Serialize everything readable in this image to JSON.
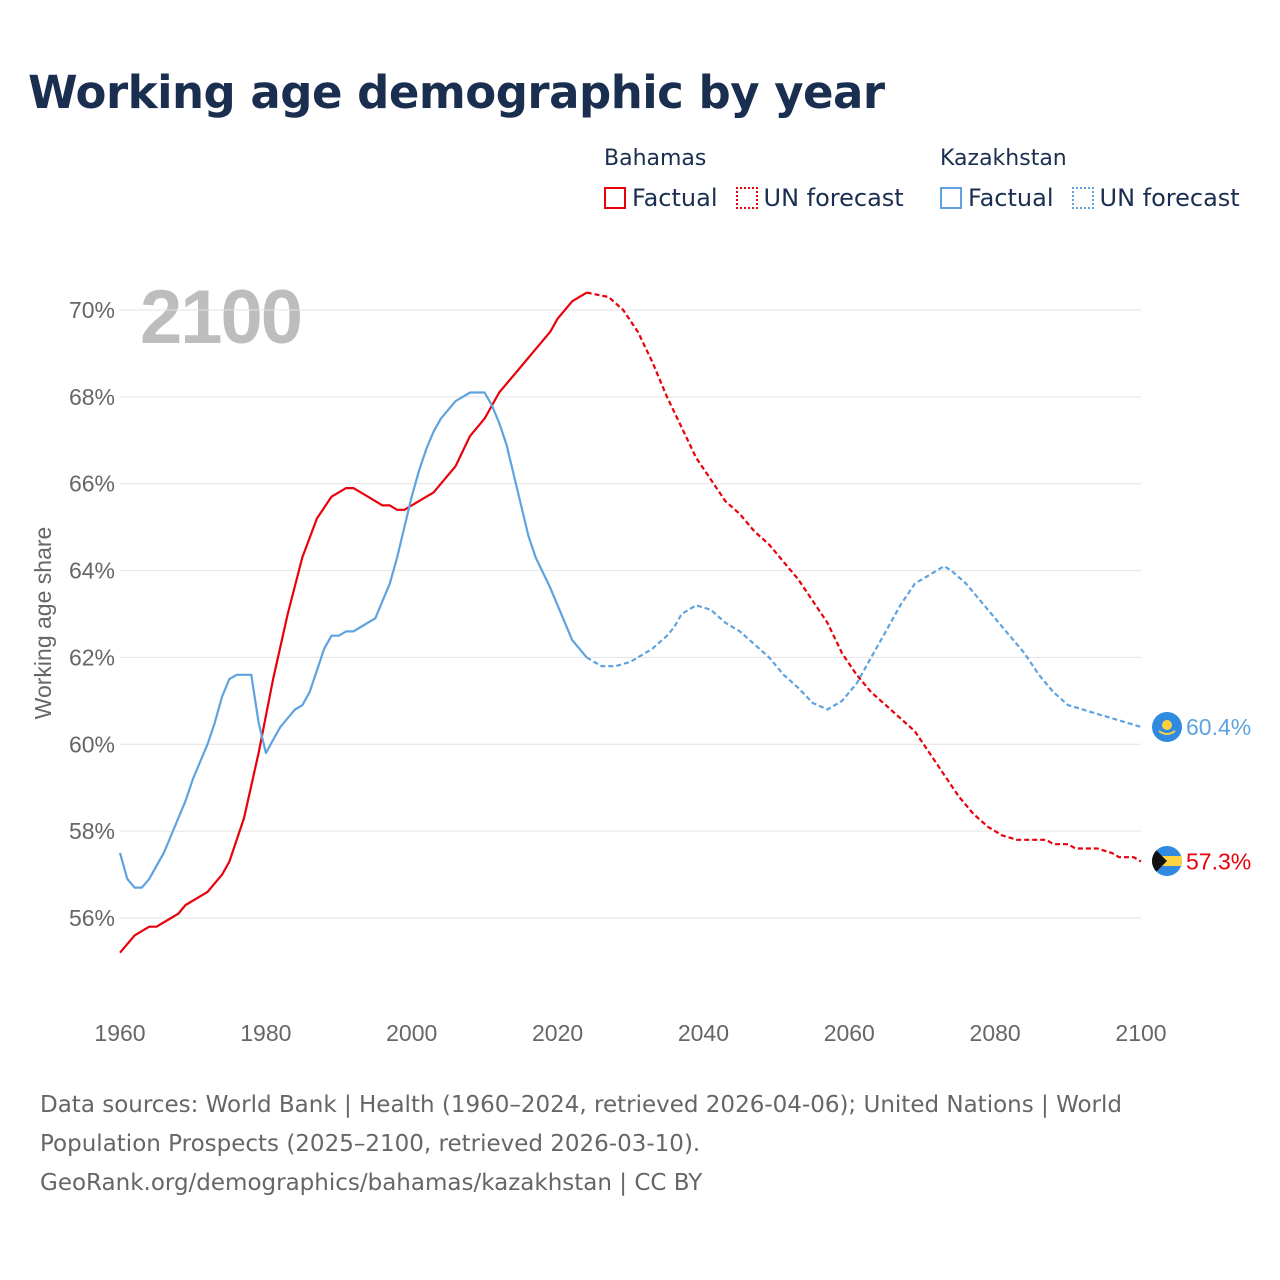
{
  "title": "Working age demographic by year",
  "legend": [
    {
      "group": "Bahamas",
      "factual": "Factual",
      "forecast": "UN forecast",
      "color": "#e8000b"
    },
    {
      "group": "Kazakhstan",
      "factual": "Factual",
      "forecast": "UN forecast",
      "color": "#5ea3e0"
    }
  ],
  "year_label": "2100",
  "source": {
    "line1": "Data sources: World Bank | Health (1960–2024, retrieved 2026-04-06); United Nations | World Population Prospects (2025–2100, retrieved 2026-03-10).",
    "line2": "GeoRank.org/demographics/bahamas/kazakhstan | CC BY"
  },
  "chart_data": {
    "type": "line",
    "title": "Working age demographic by year",
    "xlabel": "",
    "ylabel": "Working age share",
    "xlim": [
      1960,
      2100
    ],
    "ylim": [
      54.2,
      71.5
    ],
    "x_ticks": [
      1960,
      1980,
      2000,
      2020,
      2040,
      2060,
      2080,
      2100
    ],
    "x_tick_labels": [
      "1960",
      "1980",
      "2000",
      "2020",
      "2040",
      "2060",
      "2080",
      "2100"
    ],
    "y_ticks": [
      56,
      58,
      60,
      62,
      64,
      66,
      68,
      70
    ],
    "y_tick_labels": [
      "56%",
      "58%",
      "60%",
      "62%",
      "64%",
      "66%",
      "68%",
      "70%"
    ],
    "grid": true,
    "factual_until": 2024,
    "series": [
      {
        "name": "Bahamas",
        "color": "#e8000b",
        "end_label": "57.3%",
        "points": [
          [
            1960,
            55.2
          ],
          [
            1962,
            55.6
          ],
          [
            1964,
            55.8
          ],
          [
            1965,
            55.8
          ],
          [
            1967,
            56.0
          ],
          [
            1968,
            56.1
          ],
          [
            1969,
            56.3
          ],
          [
            1971,
            56.5
          ],
          [
            1972,
            56.6
          ],
          [
            1974,
            57.0
          ],
          [
            1975,
            57.3
          ],
          [
            1977,
            58.3
          ],
          [
            1979,
            59.8
          ],
          [
            1981,
            61.5
          ],
          [
            1983,
            63.0
          ],
          [
            1985,
            64.3
          ],
          [
            1987,
            65.2
          ],
          [
            1989,
            65.7
          ],
          [
            1991,
            65.9
          ],
          [
            1992,
            65.9
          ],
          [
            1994,
            65.7
          ],
          [
            1996,
            65.5
          ],
          [
            1997,
            65.5
          ],
          [
            1998,
            65.4
          ],
          [
            1999,
            65.4
          ],
          [
            2001,
            65.6
          ],
          [
            2003,
            65.8
          ],
          [
            2004,
            66.0
          ],
          [
            2006,
            66.4
          ],
          [
            2008,
            67.1
          ],
          [
            2010,
            67.5
          ],
          [
            2012,
            68.1
          ],
          [
            2013,
            68.3
          ],
          [
            2015,
            68.7
          ],
          [
            2017,
            69.1
          ],
          [
            2019,
            69.5
          ],
          [
            2020,
            69.8
          ],
          [
            2022,
            70.2
          ],
          [
            2024,
            70.4
          ],
          [
            2027,
            70.3
          ],
          [
            2029,
            70.0
          ],
          [
            2031,
            69.5
          ],
          [
            2033,
            68.8
          ],
          [
            2035,
            68.0
          ],
          [
            2037,
            67.3
          ],
          [
            2039,
            66.6
          ],
          [
            2041,
            66.1
          ],
          [
            2043,
            65.6
          ],
          [
            2045,
            65.3
          ],
          [
            2047,
            64.9
          ],
          [
            2049,
            64.6
          ],
          [
            2051,
            64.2
          ],
          [
            2053,
            63.8
          ],
          [
            2055,
            63.3
          ],
          [
            2057,
            62.8
          ],
          [
            2059,
            62.1
          ],
          [
            2061,
            61.6
          ],
          [
            2063,
            61.2
          ],
          [
            2065,
            60.9
          ],
          [
            2067,
            60.6
          ],
          [
            2069,
            60.3
          ],
          [
            2071,
            59.8
          ],
          [
            2073,
            59.3
          ],
          [
            2075,
            58.8
          ],
          [
            2077,
            58.4
          ],
          [
            2079,
            58.1
          ],
          [
            2081,
            57.9
          ],
          [
            2083,
            57.8
          ],
          [
            2087,
            57.8
          ],
          [
            2088,
            57.7
          ],
          [
            2090,
            57.7
          ],
          [
            2091,
            57.6
          ],
          [
            2094,
            57.6
          ],
          [
            2096,
            57.5
          ],
          [
            2097,
            57.4
          ],
          [
            2099,
            57.4
          ],
          [
            2100,
            57.3
          ]
        ]
      },
      {
        "name": "Kazakhstan",
        "color": "#5ea3e0",
        "end_label": "60.4%",
        "points": [
          [
            1960,
            57.5
          ],
          [
            1961,
            56.9
          ],
          [
            1962,
            56.7
          ],
          [
            1963,
            56.7
          ],
          [
            1964,
            56.9
          ],
          [
            1966,
            57.5
          ],
          [
            1967,
            57.9
          ],
          [
            1969,
            58.7
          ],
          [
            1970,
            59.2
          ],
          [
            1972,
            60.0
          ],
          [
            1973,
            60.5
          ],
          [
            1974,
            61.1
          ],
          [
            1975,
            61.5
          ],
          [
            1976,
            61.6
          ],
          [
            1978,
            61.6
          ],
          [
            1979,
            60.5
          ],
          [
            1980,
            59.8
          ],
          [
            1981,
            60.1
          ],
          [
            1982,
            60.4
          ],
          [
            1983,
            60.6
          ],
          [
            1984,
            60.8
          ],
          [
            1985,
            60.9
          ],
          [
            1986,
            61.2
          ],
          [
            1987,
            61.7
          ],
          [
            1988,
            62.2
          ],
          [
            1989,
            62.5
          ],
          [
            1990,
            62.5
          ],
          [
            1991,
            62.6
          ],
          [
            1992,
            62.6
          ],
          [
            1993,
            62.7
          ],
          [
            1995,
            62.9
          ],
          [
            1997,
            63.7
          ],
          [
            1998,
            64.3
          ],
          [
            1999,
            65.0
          ],
          [
            2000,
            65.7
          ],
          [
            2001,
            66.3
          ],
          [
            2002,
            66.8
          ],
          [
            2003,
            67.2
          ],
          [
            2004,
            67.5
          ],
          [
            2006,
            67.9
          ],
          [
            2008,
            68.1
          ],
          [
            2010,
            68.1
          ],
          [
            2011,
            67.8
          ],
          [
            2012,
            67.4
          ],
          [
            2013,
            66.9
          ],
          [
            2014,
            66.2
          ],
          [
            2015,
            65.5
          ],
          [
            2016,
            64.8
          ],
          [
            2017,
            64.3
          ],
          [
            2019,
            63.6
          ],
          [
            2021,
            62.8
          ],
          [
            2022,
            62.4
          ],
          [
            2024,
            62.0
          ],
          [
            2026,
            61.8
          ],
          [
            2028,
            61.8
          ],
          [
            2030,
            61.9
          ],
          [
            2032,
            62.1
          ],
          [
            2033,
            62.2
          ],
          [
            2035,
            62.5
          ],
          [
            2036,
            62.7
          ],
          [
            2037,
            63.0
          ],
          [
            2038,
            63.1
          ],
          [
            2039,
            63.2
          ],
          [
            2041,
            63.1
          ],
          [
            2043,
            62.8
          ],
          [
            2045,
            62.6
          ],
          [
            2047,
            62.3
          ],
          [
            2049,
            62.0
          ],
          [
            2051,
            61.6
          ],
          [
            2053,
            61.3
          ],
          [
            2055,
            60.95
          ],
          [
            2057,
            60.8
          ],
          [
            2059,
            61.0
          ],
          [
            2061,
            61.4
          ],
          [
            2063,
            62.0
          ],
          [
            2065,
            62.6
          ],
          [
            2067,
            63.2
          ],
          [
            2069,
            63.7
          ],
          [
            2071,
            63.9
          ],
          [
            2073,
            64.1
          ],
          [
            2074,
            64.0
          ],
          [
            2076,
            63.7
          ],
          [
            2078,
            63.3
          ],
          [
            2080,
            62.9
          ],
          [
            2082,
            62.5
          ],
          [
            2084,
            62.1
          ],
          [
            2086,
            61.6
          ],
          [
            2088,
            61.2
          ],
          [
            2090,
            60.9
          ],
          [
            2092,
            60.8
          ],
          [
            2094,
            60.7
          ],
          [
            2096,
            60.6
          ],
          [
            2098,
            60.5
          ],
          [
            2100,
            60.4
          ]
        ]
      }
    ]
  }
}
